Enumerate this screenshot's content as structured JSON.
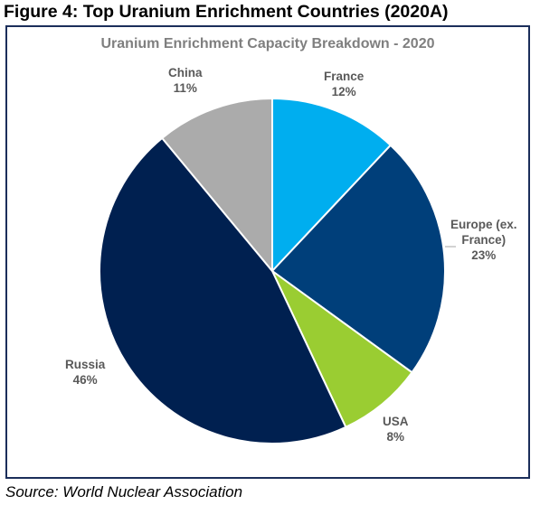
{
  "figure_title": "Figure 4: Top Uranium Enrichment Countries (2020A)",
  "source": "Source: World Nuclear Association",
  "chart_data": {
    "type": "pie",
    "title": "Uranium Enrichment Capacity Breakdown - 2020",
    "slices": [
      {
        "label": "France",
        "label_lines": [
          "France"
        ],
        "value": 12,
        "value_label": "12%",
        "color": "#00aeef"
      },
      {
        "label": "Europe (ex. France)",
        "label_lines": [
          "Europe (ex.",
          "France)"
        ],
        "value": 23,
        "value_label": "23%",
        "color": "#003f7a"
      },
      {
        "label": "USA",
        "label_lines": [
          "USA"
        ],
        "value": 8,
        "value_label": "8%",
        "color": "#9acd32"
      },
      {
        "label": "Russia",
        "label_lines": [
          "Russia"
        ],
        "value": 46,
        "value_label": "46%",
        "color": "#002050"
      },
      {
        "label": "China",
        "label_lines": [
          "China"
        ],
        "value": 11,
        "value_label": "11%",
        "color": "#ababab"
      }
    ],
    "start_angle_deg": 0,
    "direction": "clockwise",
    "legend": "none"
  }
}
